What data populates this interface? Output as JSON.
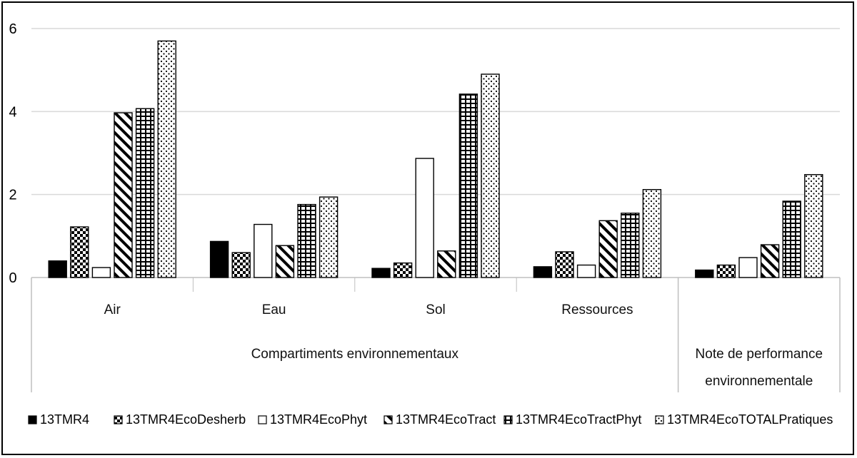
{
  "chart_data": {
    "type": "bar",
    "categories": [
      "Air",
      "Eau",
      "Sol",
      "Ressources",
      ""
    ],
    "groups": [
      {
        "label": "Compartiments environnementaux",
        "categories": [
          "Air",
          "Eau",
          "Sol",
          "Ressources"
        ]
      },
      {
        "label": "Note de performance environnementale",
        "categories": [
          ""
        ]
      }
    ],
    "series": [
      {
        "name": "13TMR4",
        "pattern": "solid",
        "values": [
          0.4,
          0.87,
          0.22,
          0.26,
          0.18
        ]
      },
      {
        "name": "13TMR4EcoDesherb",
        "pattern": "checker",
        "values": [
          1.22,
          0.6,
          0.35,
          0.62,
          0.3
        ]
      },
      {
        "name": "13TMR4EcoPhyt",
        "pattern": "empty",
        "values": [
          0.24,
          1.28,
          2.87,
          0.3,
          0.48
        ]
      },
      {
        "name": "13TMR4EcoTract",
        "pattern": "diagonal",
        "values": [
          3.97,
          0.77,
          0.64,
          1.37,
          0.79
        ]
      },
      {
        "name": "13TMR4EcoTractPhyt",
        "pattern": "grid",
        "values": [
          4.07,
          1.76,
          4.42,
          1.55,
          1.84
        ]
      },
      {
        "name": "13TMR4EcoTOTALPratiques",
        "pattern": "dots",
        "values": [
          5.7,
          1.94,
          4.9,
          2.12,
          2.48
        ]
      }
    ],
    "yticks": [
      0,
      2,
      4,
      6
    ],
    "ylim": [
      0,
      6
    ],
    "grid": true,
    "legend_position": "bottom"
  }
}
